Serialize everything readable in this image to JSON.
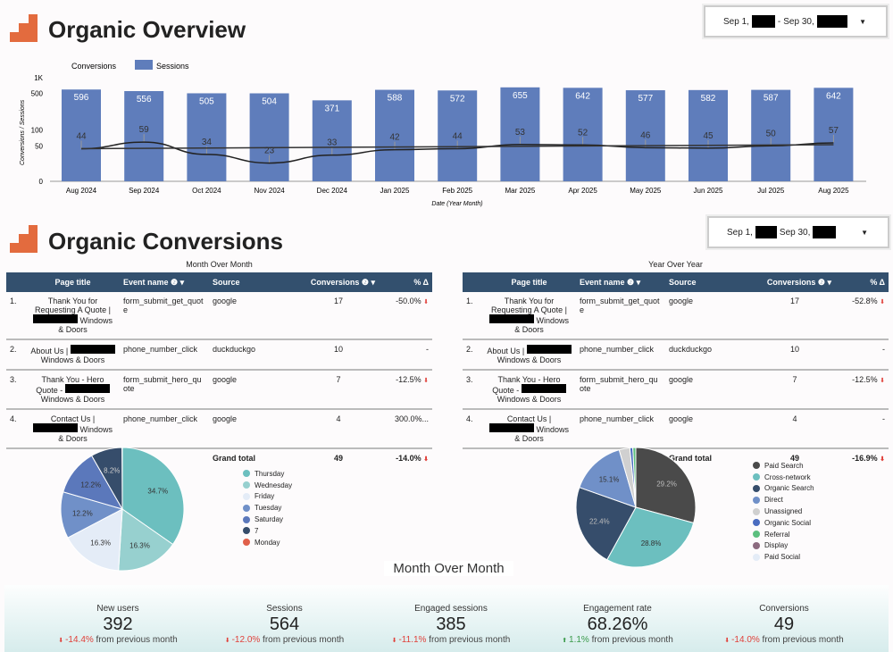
{
  "overview": {
    "title": "Organic Overview",
    "date_start": "Sep 1,",
    "date_end": "Sep 30,"
  },
  "conversions_section": {
    "title": "Organic Conversions",
    "date_start": "Sep 1,",
    "date_end": "Sep 30,"
  },
  "chart_data": [
    {
      "type": "bar+line",
      "legend": [
        "Conversions",
        "Sessions"
      ],
      "ylabel": "Conversions / Sessions",
      "xlabel": "Date (Year Month)",
      "y_scale": "log",
      "y_ticks": [
        "0",
        "50",
        "100",
        "500",
        "1K"
      ],
      "categories": [
        "Aug 2024",
        "Sep 2024",
        "Oct 2024",
        "Nov 2024",
        "Dec 2024",
        "Jan 2025",
        "Feb 2025",
        "Mar 2025",
        "Apr 2025",
        "May 2025",
        "Jun 2025",
        "Jul 2025",
        "Aug 2025"
      ],
      "series": [
        {
          "name": "Sessions",
          "type": "bar",
          "color": "#5f7dbb",
          "values": [
            596,
            556,
            505,
            504,
            371,
            588,
            572,
            655,
            642,
            577,
            582,
            587,
            642
          ]
        },
        {
          "name": "Conversions",
          "type": "line",
          "color": "#222222",
          "values": [
            44,
            59,
            34,
            23,
            33,
            42,
            44,
            53,
            52,
            46,
            45,
            50,
            57
          ]
        }
      ]
    },
    {
      "type": "pie",
      "slices": [
        {
          "label": "Thursday",
          "value": 34.7,
          "color": "#6cbfbf"
        },
        {
          "label": "Wednesday",
          "value": 16.3,
          "color": "#97d0cf"
        },
        {
          "label": "Friday",
          "value": 16.3,
          "color": "#e4ecf7"
        },
        {
          "label": "Tuesday",
          "value": 12.2,
          "color": "#7090c8"
        },
        {
          "label": "Saturday",
          "value": 12.2,
          "color": "#5b78bb"
        },
        {
          "label": "7",
          "value": 8.2,
          "color": "#364d6b"
        },
        {
          "label": "Monday",
          "value": 0,
          "color": "#e0604a"
        }
      ],
      "legend": "right"
    },
    {
      "type": "pie",
      "slices": [
        {
          "label": "Paid Search",
          "value": 29.2,
          "color": "#4a4a4a"
        },
        {
          "label": "Cross-network",
          "value": 28.8,
          "color": "#6cbfbf"
        },
        {
          "label": "Organic Search",
          "value": 22.4,
          "color": "#364d6b"
        },
        {
          "label": "Direct",
          "value": 15.1,
          "color": "#7090c8"
        },
        {
          "label": "Unassigned",
          "value": 2.9,
          "color": "#d0d0d0"
        },
        {
          "label": "Organic Social",
          "value": 0.8,
          "color": "#4a6cc0"
        },
        {
          "label": "Referral",
          "value": 0.8,
          "color": "#5cbf7f"
        },
        {
          "label": "Display",
          "value": 0,
          "color": "#8c6a7f"
        },
        {
          "label": "Paid Social",
          "value": 0,
          "color": "#e4ecf7"
        }
      ],
      "legend": "right"
    }
  ],
  "tables": [
    {
      "caption": "Month Over Month",
      "headers": [
        "Page title",
        "Event name",
        "Source",
        "Conversions",
        "% Δ"
      ],
      "rows": [
        [
          "1.",
          "Thank You for Requesting A Quote |",
          "Windows & Doors",
          "form_submit_get_quote",
          "google",
          "17",
          "-50.0%"
        ],
        [
          "2.",
          "About Us |",
          "Windows & Doors",
          "phone_number_click",
          "duckduckgo",
          "10",
          "-"
        ],
        [
          "3.",
          "Thank You - Hero Quote -",
          "Windows & Doors",
          "form_submit_hero_quote",
          "google",
          "7",
          "-12.5%"
        ],
        [
          "4.",
          "Contact Us |",
          "Windows & Doors",
          "phone_number_click",
          "google",
          "4",
          "300.0%..."
        ]
      ],
      "total": {
        "label": "Grand total",
        "value": "49",
        "delta": "-14.0%"
      }
    },
    {
      "caption": "Year Over Year",
      "headers": [
        "Page title",
        "Event name",
        "Source",
        "Conversions",
        "% Δ"
      ],
      "rows": [
        [
          "1.",
          "Thank You for Requesting A Quote |",
          "Windows & Doors",
          "form_submit_get_quote",
          "google",
          "17",
          "-52.8%"
        ],
        [
          "2.",
          "About Us |",
          "Windows & Doors",
          "phone_number_click",
          "duckduckgo",
          "10",
          "-"
        ],
        [
          "3.",
          "Thank You - Hero Quote -",
          "Windows & Doors",
          "form_submit_hero_quote",
          "google",
          "7",
          "-12.5%"
        ],
        [
          "4.",
          "Contact Us |",
          "Windows & Doors",
          "phone_number_click",
          "google",
          "4",
          "-"
        ]
      ],
      "total": {
        "label": "Grand total",
        "value": "49",
        "delta": "-16.9%"
      }
    }
  ],
  "kpis": {
    "caption": "Month Over Month",
    "suffix": "from previous month",
    "items": [
      {
        "label": "New users",
        "value": "392",
        "delta": "-14.4%",
        "dir": "down"
      },
      {
        "label": "Sessions",
        "value": "564",
        "delta": "-12.0%",
        "dir": "down"
      },
      {
        "label": "Engaged sessions",
        "value": "385",
        "delta": "-11.1%",
        "dir": "down"
      },
      {
        "label": "Engagement rate",
        "value": "68.26%",
        "delta": "1.1%",
        "dir": "up"
      },
      {
        "label": "Conversions",
        "value": "49",
        "delta": "-14.0%",
        "dir": "down"
      }
    ]
  }
}
